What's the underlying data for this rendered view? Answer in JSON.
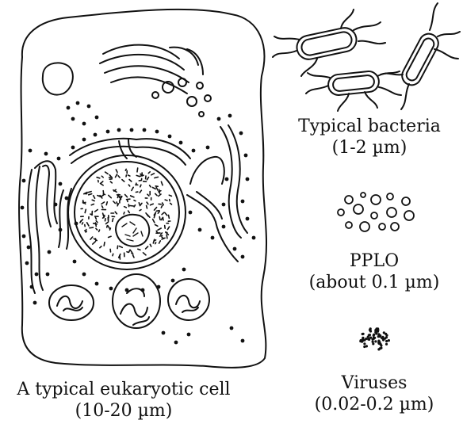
{
  "cell": {
    "label": "A typical eukaryotic cell",
    "size": "(10-20 µm)",
    "icon": "eukaryotic-cell-icon"
  },
  "bacteria": {
    "label": "Typical bacteria",
    "size": "(1-2 µm)",
    "icon": "bacteria-icon"
  },
  "pplo": {
    "label": "PPLO",
    "size": "(about 0.1 µm)",
    "icon": "pplo-icon"
  },
  "viruses": {
    "label": "Viruses",
    "size": "(0.02-0.2 µm)",
    "icon": "virus-icon"
  }
}
